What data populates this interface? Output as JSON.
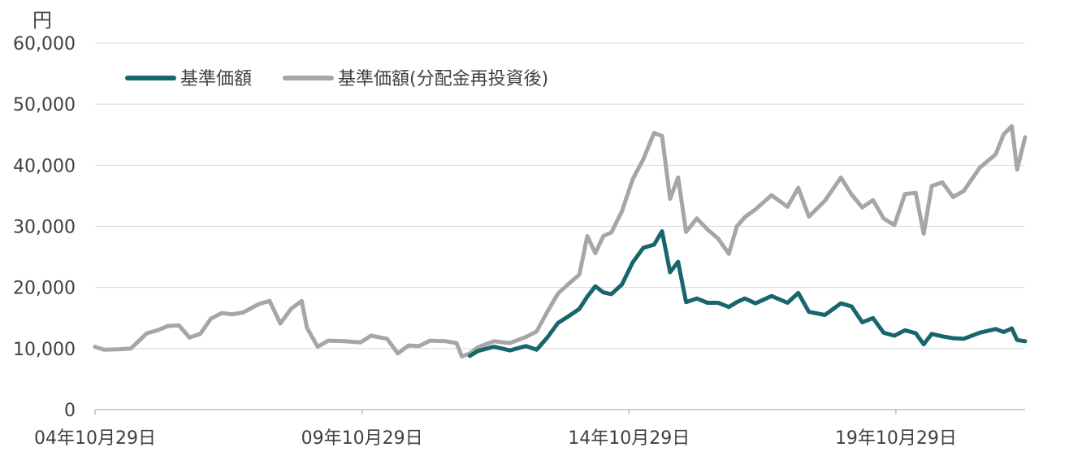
{
  "chart_data": {
    "type": "line",
    "unit_label": "円",
    "y_ticks": [
      "0",
      "10,000",
      "20,000",
      "30,000",
      "40,000",
      "50,000",
      "60,000"
    ],
    "ylim": [
      0,
      60000
    ],
    "x_ticks": [
      "04年10月29日",
      "09年10月29日",
      "14年10月29日",
      "19年10月29日"
    ],
    "x_tick_years": [
      2004.83,
      2009.83,
      2014.83,
      2019.83
    ],
    "xlim": [
      2004.83,
      2022.25
    ],
    "grid": "horizontal",
    "legend_position": "top-left",
    "series": [
      {
        "name": "基準価額",
        "color": "#17666b",
        "x": [
          2011.85,
          2012.0,
          2012.3,
          2012.6,
          2012.9,
          2013.1,
          2013.3,
          2013.5,
          2013.7,
          2013.9,
          2014.05,
          2014.2,
          2014.35,
          2014.5,
          2014.7,
          2014.9,
          2015.1,
          2015.3,
          2015.45,
          2015.6,
          2015.75,
          2015.9,
          2016.1,
          2016.3,
          2016.5,
          2016.7,
          2016.85,
          2017.0,
          2017.2,
          2017.5,
          2017.8,
          2018.0,
          2018.2,
          2018.5,
          2018.8,
          2019.0,
          2019.2,
          2019.4,
          2019.6,
          2019.8,
          2020.0,
          2020.2,
          2020.35,
          2020.5,
          2020.7,
          2020.9,
          2021.1,
          2021.4,
          2021.7,
          2021.85,
          2022.0,
          2022.1,
          2022.25
        ],
        "values": [
          8800,
          9600,
          10300,
          9700,
          10400,
          9800,
          11800,
          14200,
          15300,
          16500,
          18500,
          20200,
          19200,
          18900,
          20500,
          24100,
          26500,
          27000,
          29200,
          22500,
          24200,
          17600,
          18200,
          17500,
          17500,
          16800,
          17600,
          18200,
          17400,
          18600,
          17500,
          19100,
          16000,
          15500,
          17400,
          16900,
          14300,
          15000,
          12600,
          12100,
          13000,
          12500,
          10700,
          12400,
          12000,
          11700,
          11600,
          12600,
          13200,
          12700,
          13300,
          11400,
          11200
        ]
      },
      {
        "name": "基準価額(分配金再投資後)",
        "color": "#a6a6a6",
        "x": [
          2004.83,
          2005.0,
          2005.3,
          2005.5,
          2005.8,
          2006.0,
          2006.2,
          2006.4,
          2006.6,
          2006.8,
          2007.0,
          2007.2,
          2007.4,
          2007.6,
          2007.9,
          2008.1,
          2008.3,
          2008.5,
          2008.7,
          2008.8,
          2009.0,
          2009.2,
          2009.5,
          2009.8,
          2010.0,
          2010.3,
          2010.5,
          2010.7,
          2010.9,
          2011.1,
          2011.4,
          2011.6,
          2011.7,
          2011.85,
          2012.0,
          2012.3,
          2012.6,
          2012.9,
          2013.1,
          2013.3,
          2013.5,
          2013.7,
          2013.9,
          2014.05,
          2014.2,
          2014.35,
          2014.5,
          2014.7,
          2014.9,
          2015.1,
          2015.3,
          2015.45,
          2015.6,
          2015.75,
          2015.9,
          2016.1,
          2016.3,
          2016.5,
          2016.7,
          2016.85,
          2017.0,
          2017.2,
          2017.5,
          2017.8,
          2018.0,
          2018.2,
          2018.5,
          2018.8,
          2019.0,
          2019.2,
          2019.4,
          2019.6,
          2019.8,
          2020.0,
          2020.2,
          2020.35,
          2020.5,
          2020.7,
          2020.9,
          2021.1,
          2021.4,
          2021.7,
          2021.85,
          2022.0,
          2022.1,
          2022.25
        ],
        "values": [
          10300,
          9800,
          9900,
          10000,
          12500,
          13000,
          13700,
          13800,
          11800,
          12400,
          14900,
          15800,
          15600,
          15900,
          17300,
          17800,
          14100,
          16500,
          17800,
          13400,
          10300,
          11300,
          11200,
          11000,
          12100,
          11600,
          9200,
          10500,
          10400,
          11300,
          11200,
          10900,
          8700,
          9200,
          10200,
          11200,
          10900,
          11900,
          12800,
          16000,
          19000,
          20600,
          22100,
          28400,
          25600,
          28400,
          29000,
          32500,
          37700,
          41000,
          45300,
          44800,
          34500,
          38000,
          29100,
          31300,
          29500,
          28000,
          25500,
          30000,
          31500,
          32800,
          35100,
          33200,
          36300,
          31600,
          34200,
          38000,
          35200,
          33100,
          34300,
          31300,
          30200,
          35300,
          35500,
          28800,
          36600,
          37200,
          34800,
          35800,
          39600,
          41800,
          45100,
          46400,
          39300,
          44600
        ]
      }
    ]
  }
}
